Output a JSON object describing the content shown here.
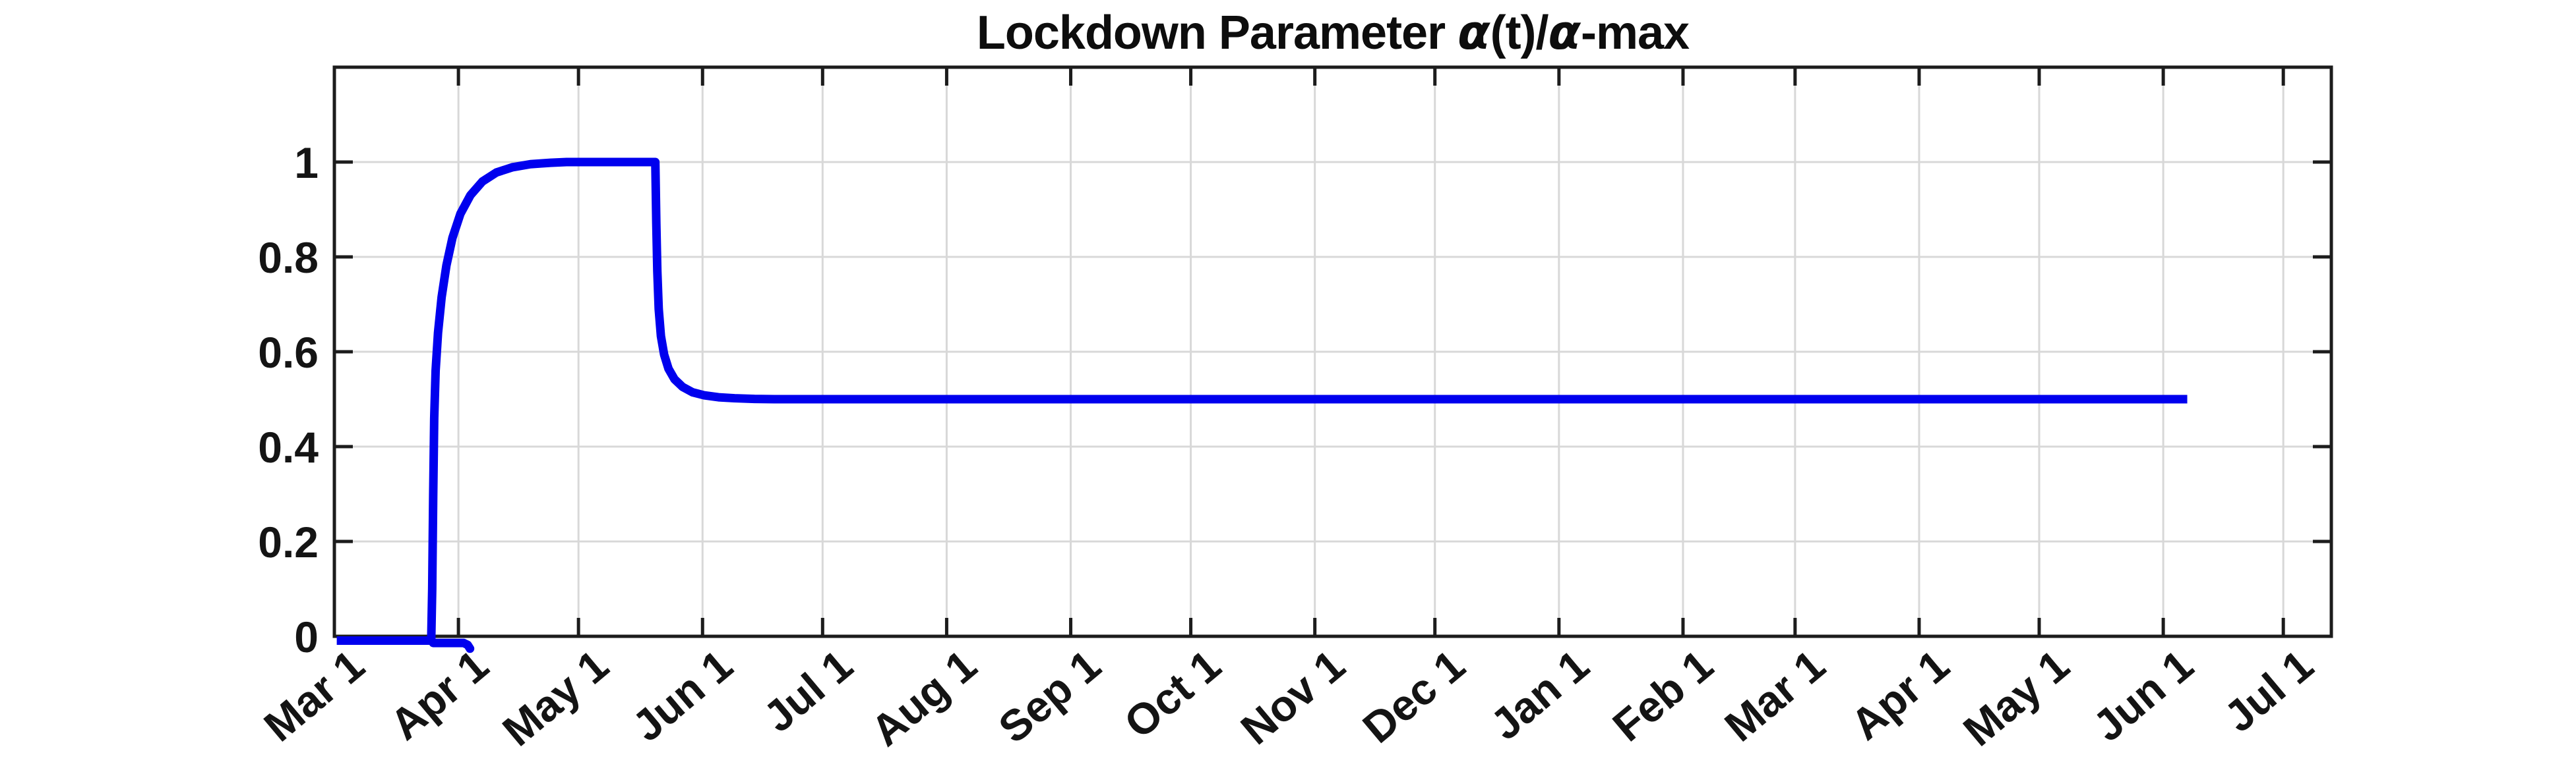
{
  "figure": {
    "title_parts": [
      {
        "text": "Lockdown Parameter ",
        "alpha": false
      },
      {
        "text": "α",
        "alpha": true
      },
      {
        "text": "(t)/",
        "alpha": false
      },
      {
        "text": "α",
        "alpha": true
      },
      {
        "text": "-max",
        "alpha": false
      }
    ]
  },
  "chart_data": {
    "type": "line",
    "title": "Lockdown Parameter α(t)/α-max",
    "xlabel": "",
    "ylabel": "",
    "legend": "none",
    "grid": true,
    "grid_color": "#d8d8d8",
    "axis_color": "#1c1c1c",
    "text_color": "#141414",
    "line_color": "#0000EE",
    "line_width": 13,
    "x_axis": {
      "unit": "date (days after Mar 1)",
      "tick_labels": [
        "Mar 1",
        "Apr 1",
        "May 1",
        "Jun 1",
        "Jul 1",
        "Aug 1",
        "Sep 1",
        "Oct 1",
        "Nov 1",
        "Dec 1",
        "Jan 1",
        "Feb 1",
        "Mar 1",
        "Apr 1",
        "May 1",
        "Jun 1",
        "Jul 1"
      ],
      "tick_day_offsets": [
        0,
        31,
        61,
        92,
        122,
        153,
        184,
        214,
        245,
        275,
        306,
        337,
        365,
        396,
        426,
        457,
        487
      ],
      "xlim_days": [
        0,
        499
      ],
      "label_rotation_deg": 40
    },
    "y_axis": {
      "tick_labels": [
        "0",
        "0.2",
        "0.4",
        "0.6",
        "0.8",
        "1"
      ],
      "ticks": [
        0,
        0.2,
        0.4,
        0.6,
        0.8,
        1
      ],
      "ylim": [
        0,
        1.2
      ]
    },
    "series": [
      {
        "name": "lockdown parameter alpha(t)/alpha-max",
        "cap": "butt",
        "points": [
          [
            0.6,
            -0.009
          ],
          [
            24.2,
            -0.009
          ],
          [
            24.45,
            0.1
          ],
          [
            24.7,
            0.3
          ],
          [
            24.95,
            0.46
          ],
          [
            25.3,
            0.56
          ],
          [
            25.9,
            0.64
          ],
          [
            26.8,
            0.715
          ],
          [
            28,
            0.782
          ],
          [
            29.5,
            0.84
          ],
          [
            31.5,
            0.891
          ],
          [
            34,
            0.93
          ],
          [
            37,
            0.959
          ],
          [
            40.5,
            0.978
          ],
          [
            44.5,
            0.989
          ],
          [
            49,
            0.9955
          ],
          [
            54,
            0.9985
          ],
          [
            58,
            1.0
          ],
          [
            80.2,
            1.0
          ],
          [
            80.45,
            0.87
          ],
          [
            80.7,
            0.77
          ],
          [
            81.05,
            0.69
          ],
          [
            81.6,
            0.633
          ],
          [
            82.4,
            0.594
          ],
          [
            83.5,
            0.564
          ],
          [
            85,
            0.542
          ],
          [
            87,
            0.526
          ],
          [
            89.5,
            0.5145
          ],
          [
            92.5,
            0.508
          ],
          [
            96,
            0.504
          ],
          [
            100,
            0.502
          ],
          [
            105,
            0.5005
          ],
          [
            110,
            0.5
          ],
          [
            463,
            0.5
          ]
        ]
      },
      {
        "name": "below-axis baseline segment",
        "cap": "round",
        "points": [
          [
            24.7,
            -0.014
          ],
          [
            32.3,
            -0.014
          ],
          [
            33.3,
            -0.018
          ],
          [
            33.9,
            -0.026
          ]
        ]
      }
    ]
  }
}
